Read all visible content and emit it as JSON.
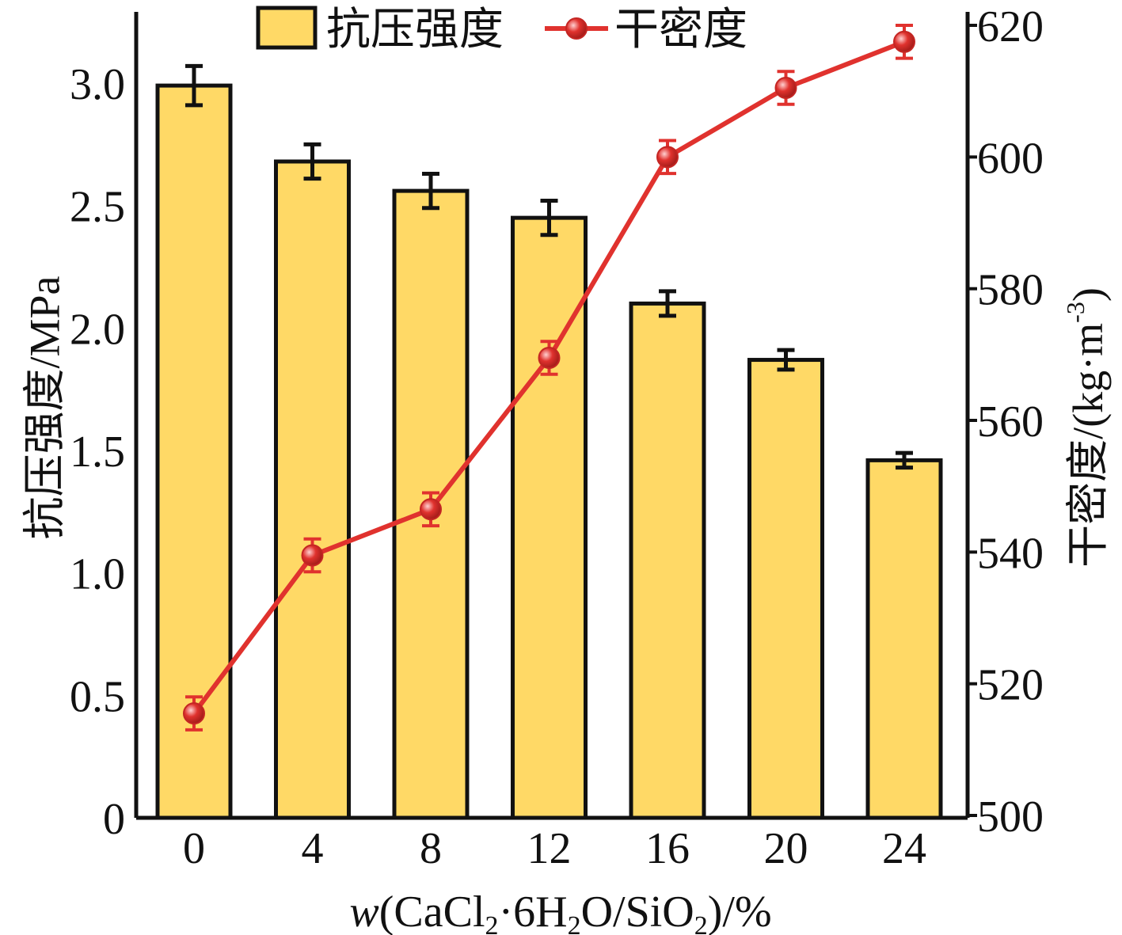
{
  "chart_data": {
    "type": "bar+line",
    "categories": [
      "0",
      "4",
      "8",
      "12",
      "16",
      "20",
      "24"
    ],
    "x": [
      0,
      4,
      8,
      12,
      16,
      20,
      24
    ],
    "xlabel": {
      "prefix": "w",
      "main": "(CaCl",
      "sub1": "2",
      "mid1": "·6H",
      "sub2": "2",
      "mid2": "O/SiO",
      "sub3": "2",
      "suffix": ")/%"
    },
    "left_axis": {
      "label": "抗压强度/MPa",
      "ylim": [
        0,
        3.25
      ],
      "ticks": [
        0,
        0.5,
        1.0,
        1.5,
        2.0,
        2.5,
        3.0
      ],
      "tick_labels": [
        "0",
        "0.5",
        "1.0",
        "1.5",
        "2.0",
        "2.5",
        "3.0"
      ]
    },
    "right_axis": {
      "label_main": "干密度/(kg·m",
      "label_sup": "-3",
      "label_end": ")",
      "ylim": [
        500,
        620
      ],
      "ticks": [
        500,
        520,
        540,
        560,
        580,
        600,
        620
      ],
      "tick_labels": [
        "500",
        "520",
        "540",
        "560",
        "580",
        "600",
        "620"
      ]
    },
    "series": [
      {
        "name": "抗压强度",
        "type": "bar",
        "axis": "left",
        "values": [
          2.99,
          2.68,
          2.56,
          2.45,
          2.1,
          1.87,
          1.46
        ],
        "errors": [
          0.08,
          0.07,
          0.07,
          0.07,
          0.05,
          0.04,
          0.03
        ]
      },
      {
        "name": "干密度",
        "type": "line",
        "axis": "right",
        "values": [
          515.5,
          539.5,
          546.5,
          569.5,
          600.0,
          610.5,
          617.5
        ],
        "errors": [
          2.5,
          2.5,
          2.5,
          2.5,
          2.5,
          2.5,
          2.5
        ]
      }
    ],
    "legend": {
      "placement": "top-center",
      "entries": [
        "抗压强度",
        "干密度"
      ]
    },
    "grid": false,
    "colors": {
      "bar_fill": "#FFD966",
      "bar_edge": "#111111",
      "line": "#E0322E",
      "marker": "#E0322E",
      "axis": "#111111"
    }
  }
}
